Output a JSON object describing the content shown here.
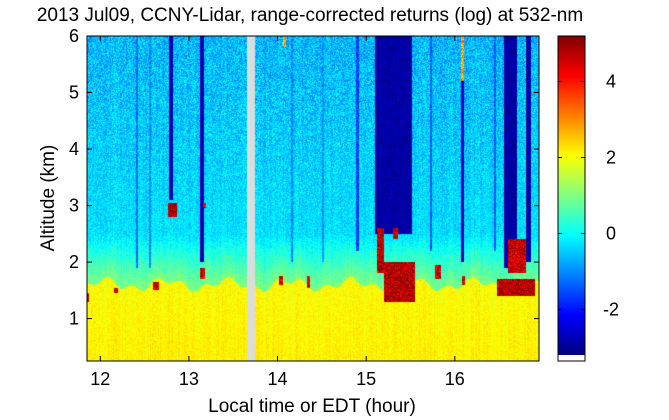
{
  "chart_data": {
    "type": "heatmap",
    "title": "2013 Jul09, CCNY-Lidar, range-corrected returns (log) at 532-nm",
    "xlabel": "Local time or EDT (hour)",
    "ylabel": "Altitude (km)",
    "xlim": [
      11.85,
      16.95
    ],
    "ylim": [
      0.25,
      6.0
    ],
    "xticks": [
      "12",
      "13",
      "14",
      "15",
      "16"
    ],
    "xtick_values": [
      12,
      13,
      14,
      15,
      16
    ],
    "yticks": [
      "1",
      "2",
      "3",
      "4",
      "5",
      "6"
    ],
    "ytick_values": [
      1,
      2,
      3,
      4,
      5,
      6
    ],
    "colorbar": {
      "range": [
        -3.2,
        5.2
      ],
      "ticks": [
        "-2",
        "0",
        "2",
        "4"
      ],
      "tick_values": [
        -2,
        0,
        2,
        4
      ],
      "colormap": "jet"
    },
    "data_gap": [
      13.65,
      13.74
    ],
    "profile_values": {
      "near_surface_0_3_to_1_5_km": 2.2,
      "boundary_layer_top_km": 1.6,
      "transition_1_5_to_2_5_km": 1.0,
      "free_troposphere_above_2_5_km": -0.3,
      "noise_amplitude": 0.6
    },
    "dark_streaks": [
      {
        "t": [
          12.4,
          12.42
        ],
        "from_km": 1.9,
        "value": -1.2
      },
      {
        "t": [
          12.55,
          12.57
        ],
        "from_km": 1.9,
        "value": -1.0
      },
      {
        "t": [
          12.78,
          12.82
        ],
        "from_km": 3.1,
        "value": -2.8
      },
      {
        "t": [
          13.12,
          13.17
        ],
        "from_km": 2.0,
        "value": -2.8
      },
      {
        "t": [
          14.15,
          14.17
        ],
        "from_km": 2.0,
        "value": -1.0
      },
      {
        "t": [
          14.5,
          14.52
        ],
        "from_km": 2.0,
        "value": -0.9
      },
      {
        "t": [
          14.88,
          14.92
        ],
        "from_km": 2.2,
        "value": -1.6
      },
      {
        "t": [
          15.1,
          15.52
        ],
        "from_km": 2.5,
        "value": -2.9
      },
      {
        "t": [
          15.72,
          15.74
        ],
        "from_km": 2.2,
        "value": -1.4
      },
      {
        "t": [
          15.85,
          15.86
        ],
        "from_km": 2.2,
        "value": -1.4
      },
      {
        "t": [
          16.07,
          16.1
        ],
        "from_km": 2.0,
        "value": -2.6
      },
      {
        "t": [
          16.44,
          16.46
        ],
        "from_km": 2.2,
        "value": -1.4
      },
      {
        "t": [
          16.55,
          16.7
        ],
        "from_km": 1.9,
        "value": -2.9
      },
      {
        "t": [
          16.8,
          16.86
        ],
        "from_km": 2.0,
        "value": -2.9
      }
    ],
    "cloud_patches": [
      {
        "t": [
          12.76,
          12.86
        ],
        "km": [
          2.8,
          3.05
        ],
        "value": 4.9
      },
      {
        "t": [
          13.12,
          13.18
        ],
        "km": [
          1.7,
          1.9
        ],
        "value": 4.4
      },
      {
        "t": [
          13.16,
          13.19
        ],
        "km": [
          2.95,
          3.05
        ],
        "value": 4.4
      },
      {
        "t": [
          12.16,
          12.2
        ],
        "km": [
          1.45,
          1.55
        ],
        "value": 4.5
      },
      {
        "t": [
          12.6,
          12.66
        ],
        "km": [
          1.5,
          1.65
        ],
        "value": 4.5
      },
      {
        "t": [
          11.85,
          11.87
        ],
        "km": [
          1.3,
          1.45
        ],
        "value": 4.5
      },
      {
        "t": [
          14.02,
          14.06
        ],
        "km": [
          1.6,
          1.75
        ],
        "value": 4.5
      },
      {
        "t": [
          14.33,
          14.37
        ],
        "km": [
          1.55,
          1.75
        ],
        "value": 4.5
      },
      {
        "t": [
          15.12,
          15.2
        ],
        "km": [
          1.8,
          2.6
        ],
        "value": 4.8
      },
      {
        "t": [
          15.2,
          15.55
        ],
        "km": [
          1.3,
          2.0
        ],
        "value": 4.8
      },
      {
        "t": [
          15.3,
          15.36
        ],
        "km": [
          2.4,
          2.6
        ],
        "value": 4.6
      },
      {
        "t": [
          15.78,
          15.84
        ],
        "km": [
          1.7,
          1.95
        ],
        "value": 4.6
      },
      {
        "t": [
          16.08,
          16.12
        ],
        "km": [
          1.6,
          1.75
        ],
        "value": 4.5
      },
      {
        "t": [
          16.48,
          16.9
        ],
        "km": [
          1.4,
          1.7
        ],
        "value": 4.8
      },
      {
        "t": [
          16.6,
          16.8
        ],
        "km": [
          1.8,
          2.4
        ],
        "value": 4.6
      },
      {
        "t": [
          14.06,
          14.1
        ],
        "km": [
          5.8,
          6.0
        ],
        "value": 2.8
      },
      {
        "t": [
          16.07,
          16.1
        ],
        "km": [
          5.2,
          6.0
        ],
        "value": 2.8
      }
    ]
  }
}
